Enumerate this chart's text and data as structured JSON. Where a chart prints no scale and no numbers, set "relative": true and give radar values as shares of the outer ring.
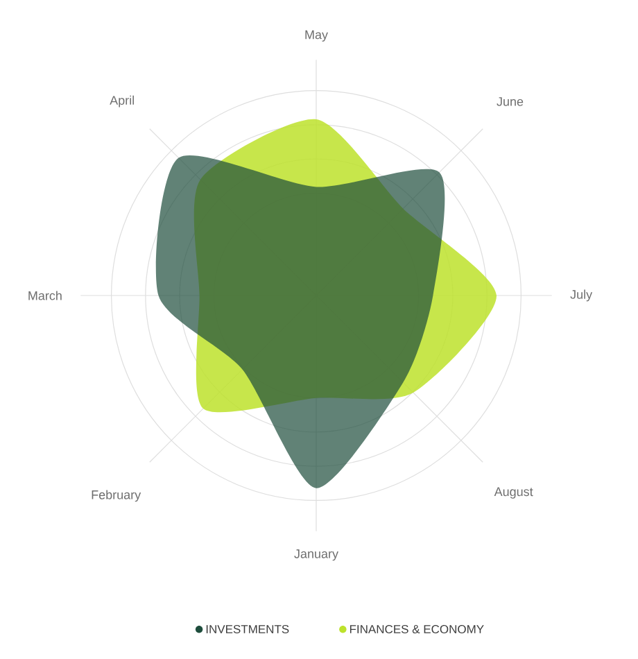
{
  "chart_data": {
    "type": "radar",
    "relative": true,
    "categories": [
      "May",
      "June",
      "July",
      "August",
      "January",
      "February",
      "March",
      "April"
    ],
    "series": [
      {
        "name": "INVESTMENTS",
        "color": "#1e4d3c",
        "values": [
          0.53,
          0.85,
          0.57,
          0.6,
          0.94,
          0.51,
          0.77,
          0.95
        ]
      },
      {
        "name": "FINANCES & ECONOMY",
        "color": "#bde22c",
        "values": [
          0.86,
          0.6,
          0.88,
          0.67,
          0.5,
          0.78,
          0.57,
          0.8
        ]
      }
    ],
    "grid": true,
    "legend": "bottom"
  }
}
